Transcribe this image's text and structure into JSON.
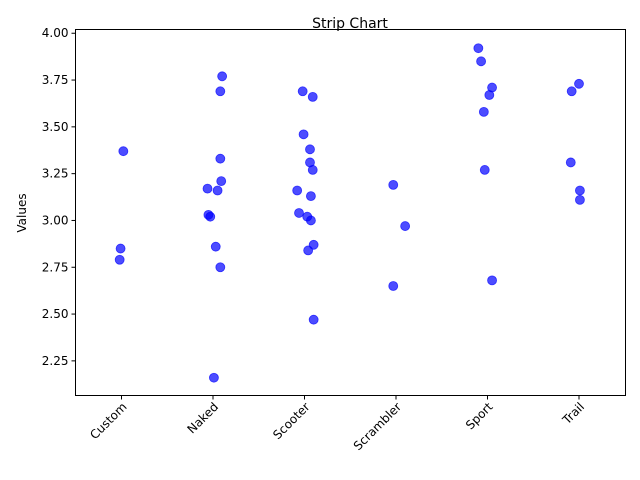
{
  "chart_data": {
    "type": "scatter",
    "subtype": "strip",
    "title": "Strip Chart",
    "xlabel": "",
    "ylabel": "Values",
    "categories": [
      "Custom",
      "Naked",
      "Scooter",
      "Scrambler",
      "Sport",
      "Trail"
    ],
    "ylim": [
      2.065,
      4.02
    ],
    "yticks": [
      2.25,
      2.5,
      2.75,
      3.0,
      3.25,
      3.5,
      3.75,
      4.0
    ],
    "ytick_labels": [
      "2.25",
      "2.50",
      "2.75",
      "3.00",
      "3.25",
      "3.50",
      "3.75",
      "4.00"
    ],
    "grid": false,
    "point_color": "#0000ff",
    "point_opacity": 0.7,
    "points": [
      {
        "category": "Custom",
        "jitter": 0.02,
        "y": 3.37
      },
      {
        "category": "Custom",
        "jitter": -0.01,
        "y": 2.85
      },
      {
        "category": "Custom",
        "jitter": -0.02,
        "y": 2.79
      },
      {
        "category": "Naked",
        "jitter": 0.1,
        "y": 3.77
      },
      {
        "category": "Naked",
        "jitter": 0.08,
        "y": 3.69
      },
      {
        "category": "Naked",
        "jitter": 0.08,
        "y": 3.33
      },
      {
        "category": "Naked",
        "jitter": 0.09,
        "y": 3.21
      },
      {
        "category": "Naked",
        "jitter": -0.06,
        "y": 3.17
      },
      {
        "category": "Naked",
        "jitter": 0.05,
        "y": 3.16
      },
      {
        "category": "Naked",
        "jitter": -0.05,
        "y": 3.03
      },
      {
        "category": "Naked",
        "jitter": -0.03,
        "y": 3.02
      },
      {
        "category": "Naked",
        "jitter": 0.03,
        "y": 2.86
      },
      {
        "category": "Naked",
        "jitter": 0.08,
        "y": 2.75
      },
      {
        "category": "Naked",
        "jitter": 0.01,
        "y": 2.16
      },
      {
        "category": "Scooter",
        "jitter": -0.02,
        "y": 3.69
      },
      {
        "category": "Scooter",
        "jitter": 0.09,
        "y": 3.66
      },
      {
        "category": "Scooter",
        "jitter": -0.01,
        "y": 3.46
      },
      {
        "category": "Scooter",
        "jitter": 0.06,
        "y": 3.38
      },
      {
        "category": "Scooter",
        "jitter": 0.06,
        "y": 3.31
      },
      {
        "category": "Scooter",
        "jitter": 0.09,
        "y": 3.27
      },
      {
        "category": "Scooter",
        "jitter": -0.08,
        "y": 3.16
      },
      {
        "category": "Scooter",
        "jitter": 0.07,
        "y": 3.13
      },
      {
        "category": "Scooter",
        "jitter": -0.06,
        "y": 3.04
      },
      {
        "category": "Scooter",
        "jitter": 0.03,
        "y": 3.02
      },
      {
        "category": "Scooter",
        "jitter": 0.07,
        "y": 3.0
      },
      {
        "category": "Scooter",
        "jitter": 0.1,
        "y": 2.87
      },
      {
        "category": "Scooter",
        "jitter": 0.04,
        "y": 2.84
      },
      {
        "category": "Scooter",
        "jitter": 0.1,
        "y": 2.47
      },
      {
        "category": "Scrambler",
        "jitter": -0.03,
        "y": 3.19
      },
      {
        "category": "Scrambler",
        "jitter": 0.1,
        "y": 2.97
      },
      {
        "category": "Scrambler",
        "jitter": -0.03,
        "y": 2.65
      },
      {
        "category": "Sport",
        "jitter": -0.1,
        "y": 3.92
      },
      {
        "category": "Sport",
        "jitter": -0.07,
        "y": 3.85
      },
      {
        "category": "Sport",
        "jitter": 0.05,
        "y": 3.71
      },
      {
        "category": "Sport",
        "jitter": 0.02,
        "y": 3.67
      },
      {
        "category": "Sport",
        "jitter": -0.04,
        "y": 3.58
      },
      {
        "category": "Sport",
        "jitter": -0.03,
        "y": 3.27
      },
      {
        "category": "Sport",
        "jitter": 0.05,
        "y": 2.68
      },
      {
        "category": "Trail",
        "jitter": 0.0,
        "y": 3.73
      },
      {
        "category": "Trail",
        "jitter": -0.08,
        "y": 3.69
      },
      {
        "category": "Trail",
        "jitter": -0.09,
        "y": 3.31
      },
      {
        "category": "Trail",
        "jitter": 0.01,
        "y": 3.16
      },
      {
        "category": "Trail",
        "jitter": 0.01,
        "y": 3.11
      }
    ]
  }
}
